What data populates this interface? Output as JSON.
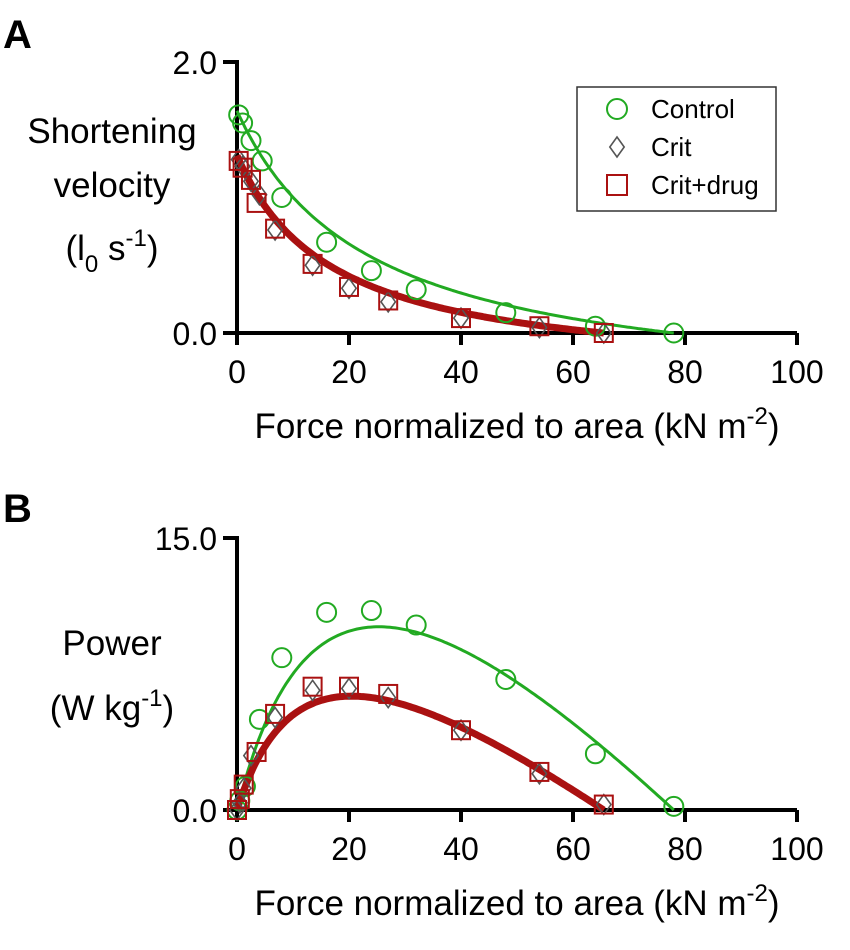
{
  "colors": {
    "control": "#22aa22",
    "crit": "#555555",
    "crit_drug": "#aa1111",
    "axis": "#000000"
  },
  "chart_data": [
    {
      "type": "scatter",
      "panel_label": "A",
      "ylabel_lines": [
        "Shortening",
        "velocity"
      ],
      "yunit": {
        "open": "(l",
        "sub": "0",
        "mid": " s",
        "sup": "-1",
        "close": ")"
      },
      "xlabel": {
        "main": "Force normalized to area (kN m",
        "sup": "-2",
        "close": ")"
      },
      "xlim": [
        0,
        100
      ],
      "ylim": [
        0,
        2
      ],
      "xticks": [
        0,
        20,
        40,
        60,
        80,
        100
      ],
      "yticks": [
        {
          "value": 0,
          "label": "0.0"
        },
        {
          "value": 2,
          "label": "2.0"
        }
      ],
      "legend": {
        "position": "top-right",
        "entries": [
          {
            "label": "Control",
            "marker": "circle",
            "series": "control"
          },
          {
            "label": "Crit",
            "marker": "diamond",
            "series": "crit"
          },
          {
            "label": "Crit+drug",
            "marker": "square",
            "series": "crit_drug"
          }
        ]
      },
      "series": [
        {
          "name": "Control",
          "key": "control",
          "marker": "circle",
          "x": [
            0.3,
            1.0,
            2.5,
            4.5,
            8,
            16,
            24,
            32,
            48,
            64,
            78
          ],
          "y": [
            1.61,
            1.55,
            1.42,
            1.27,
            1.0,
            0.67,
            0.46,
            0.32,
            0.15,
            0.05,
            0.0
          ]
        },
        {
          "name": "Crit",
          "key": "crit",
          "marker": "diamond",
          "x": [
            0.3,
            1.0,
            2.5,
            4.0,
            6.8,
            13.5,
            20,
            27,
            40,
            54,
            65.5
          ],
          "y": [
            1.28,
            1.23,
            1.12,
            1.02,
            0.76,
            0.5,
            0.33,
            0.23,
            0.11,
            0.04,
            0.0
          ]
        },
        {
          "name": "Crit+drug",
          "key": "crit_drug",
          "marker": "square",
          "x": [
            0.3,
            1.0,
            2.5,
            3.5,
            6.8,
            13.5,
            20,
            27,
            40,
            54,
            65.5
          ],
          "y": [
            1.27,
            1.22,
            1.13,
            0.96,
            0.77,
            0.51,
            0.34,
            0.24,
            0.11,
            0.05,
            0.0
          ]
        }
      ],
      "fits": [
        {
          "key": "control",
          "fmax": 78,
          "vmax": 1.64,
          "a": 0.3,
          "width": 3
        },
        {
          "key": "crit_drug",
          "fmax": 65.5,
          "vmax": 1.31,
          "a": 0.26,
          "width": 7
        }
      ]
    },
    {
      "type": "scatter",
      "panel_label": "B",
      "ylabel_lines": [
        "Power"
      ],
      "yunit": {
        "open": "(W kg",
        "sub": "",
        "mid": "",
        "sup": "-1",
        "close": ")"
      },
      "xlabel": {
        "main": "Force normalized to area (kN m",
        "sup": "-2",
        "close": ")"
      },
      "xlim": [
        0,
        100
      ],
      "ylim": [
        0,
        15
      ],
      "xticks": [
        0,
        20,
        40,
        60,
        80,
        100
      ],
      "yticks": [
        {
          "value": 0,
          "label": "0.0"
        },
        {
          "value": 15,
          "label": "15.0"
        }
      ],
      "series": [
        {
          "name": "Control",
          "key": "control",
          "marker": "circle",
          "x": [
            0,
            0.5,
            1.5,
            4.0,
            8,
            16,
            24,
            32,
            48,
            64,
            78
          ],
          "y": [
            0,
            0.5,
            1.3,
            5.0,
            8.4,
            10.9,
            11.0,
            10.2,
            7.2,
            3.1,
            0.2
          ]
        },
        {
          "name": "Crit",
          "key": "crit",
          "marker": "diamond",
          "x": [
            0,
            0.5,
            1.2,
            2.5,
            6.8,
            13.5,
            20,
            27,
            40,
            54,
            65.5
          ],
          "y": [
            0,
            0.4,
            1.2,
            3.0,
            5.1,
            6.6,
            6.7,
            6.2,
            4.4,
            2.0,
            0.3
          ]
        },
        {
          "name": "Crit+drug",
          "key": "crit_drug",
          "marker": "square",
          "x": [
            0,
            0.5,
            1.2,
            3.5,
            6.8,
            13.5,
            20,
            27,
            40,
            54,
            65.5
          ],
          "y": [
            0,
            0.6,
            1.4,
            3.2,
            5.3,
            6.8,
            6.8,
            6.4,
            4.4,
            2.1,
            0.3
          ]
        }
      ],
      "fits": [
        {
          "key": "control",
          "fmax": 78,
          "vmax": 1.64,
          "a": 0.3,
          "scale": 7.5,
          "width": 3
        },
        {
          "key": "crit_drug",
          "fmax": 65.5,
          "vmax": 1.31,
          "a": 0.26,
          "scale": 7.5,
          "width": 7
        }
      ]
    }
  ]
}
